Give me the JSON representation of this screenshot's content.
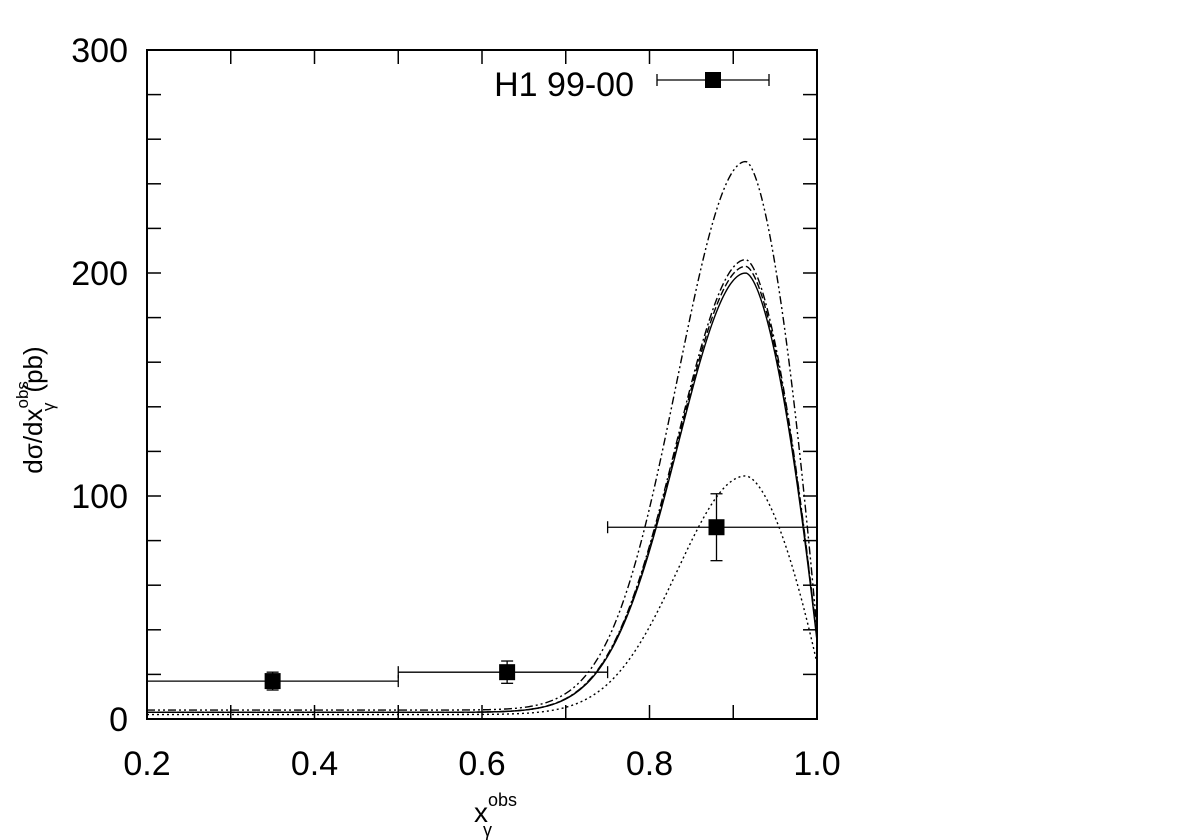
{
  "chart_data": {
    "type": "line",
    "xlim": [
      0.2,
      1.0
    ],
    "ylim": [
      0,
      300
    ],
    "x_ticks": [
      "0.2",
      "0.4",
      "0.6",
      "0.8",
      "1.0"
    ],
    "x_tick_values": [
      0.2,
      0.4,
      0.6,
      0.8,
      1.0
    ],
    "y_ticks": [
      "0",
      "100",
      "200",
      "300"
    ],
    "y_tick_values": [
      0,
      100,
      200,
      300
    ],
    "xlabel": {
      "main": "x",
      "sub": "γ",
      "sup": "obs"
    },
    "ylabel": {
      "main": "dσ/dx",
      "sub": "γ",
      "sup": "obs",
      "unit": "(pb)"
    },
    "grid": false,
    "legend_position": "top-right",
    "data_series": {
      "name": "H1 99-00",
      "points": [
        {
          "x": 0.35,
          "y": 17,
          "xlo": 0.2,
          "xhi": 0.5,
          "ylo": 13,
          "yhi": 21
        },
        {
          "x": 0.63,
          "y": 21,
          "xlo": 0.5,
          "xhi": 0.75,
          "ylo": 16,
          "yhi": 26
        },
        {
          "x": 0.88,
          "y": 86,
          "xlo": 0.75,
          "xhi": 1.0,
          "ylo": 71,
          "yhi": 101
        }
      ]
    },
    "curves": [
      {
        "style": "solid",
        "peak": 200,
        "base": 3,
        "tail": 35
      },
      {
        "style": "dashed",
        "peak": 203,
        "base": 3,
        "tail": 36
      },
      {
        "style": "dash-dot",
        "peak": 206,
        "base": 3,
        "tail": 36
      },
      {
        "style": "dash-dot-dot",
        "peak": 250,
        "base": 4,
        "tail": 40
      },
      {
        "style": "dotted",
        "peak": 109,
        "base": 2,
        "tail": 25
      }
    ]
  }
}
